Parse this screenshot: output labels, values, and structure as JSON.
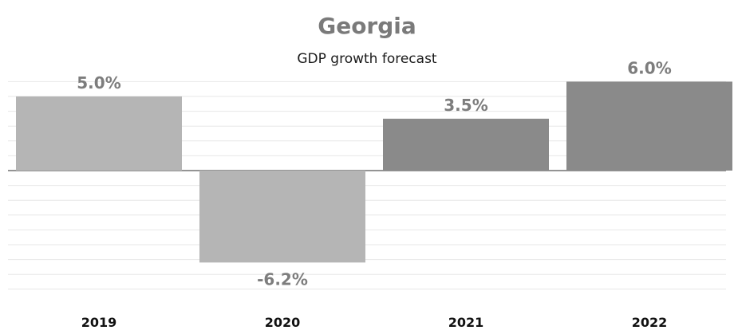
{
  "chart_data": {
    "type": "bar",
    "title": "Georgia",
    "subtitle": "GDP growth forecast",
    "categories": [
      "2019",
      "2020",
      "2021",
      "2022"
    ],
    "values": [
      5.0,
      -6.2,
      3.5,
      6.0
    ],
    "value_labels": [
      "5.0%",
      "-6.2%",
      "3.5%",
      "6.0%"
    ],
    "xlabel": "",
    "ylabel": "",
    "ylim": [
      -8,
      8
    ],
    "grid": true,
    "bar_colors": [
      "#b5b5b5",
      "#b5b5b5",
      "#8a8a8a",
      "#8a8a8a"
    ],
    "gridline_color": "#e7e7e7",
    "baseline_color": "#707070"
  }
}
